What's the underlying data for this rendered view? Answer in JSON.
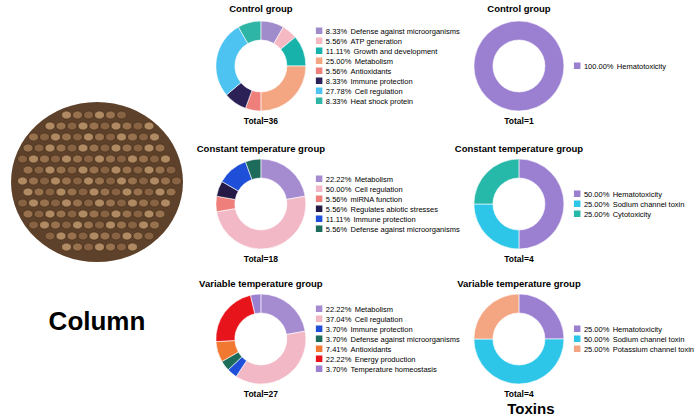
{
  "chart_data": [
    {
      "type": "donut",
      "title": "Control group",
      "subtitle": "Total=36",
      "legend": "right",
      "categories": [
        "Defense against microorganisms",
        "ATP generation",
        "Growth and development",
        "Metabolism",
        "Antioxidants",
        "Immune protection",
        "Cell regulation",
        "Heat shock protein"
      ],
      "values": [
        8.33,
        5.56,
        11.11,
        25.0,
        5.56,
        8.33,
        27.78,
        8.33
      ],
      "value_labels": [
        "8.33%",
        "5.56%",
        "11.11%",
        "25.00%",
        "5.56%",
        "8.33%",
        "27.78%",
        "8.33%"
      ],
      "colors": [
        "#a08ccb",
        "#f5b9c4",
        "#17b3aa",
        "#f4a582",
        "#ef7f7a",
        "#2b2157",
        "#4cc3f0",
        "#2fb5a6"
      ]
    },
    {
      "type": "donut",
      "title": "Control group",
      "subtitle": "Total=1",
      "legend": "right",
      "categories": [
        "Hematotoxicity"
      ],
      "values": [
        100.0
      ],
      "value_labels": [
        "100.00%"
      ],
      "colors": [
        "#9b7fd1"
      ]
    },
    {
      "type": "donut",
      "title": "Constant temperature group",
      "subtitle": "Total=18",
      "legend": "right",
      "categories": [
        "Metabolism",
        "Cell regulation",
        "miRNA function",
        "Regulates abiotic stresses",
        "Immune protection",
        "Defense against microorganisms"
      ],
      "values": [
        22.22,
        50.0,
        5.56,
        5.56,
        11.11,
        5.56
      ],
      "value_labels": [
        "22.22%",
        "50.00%",
        "5.56%",
        "5.56%",
        "11.11%",
        "5.56%"
      ],
      "colors": [
        "#a58bd0",
        "#f2b8c6",
        "#ef7f7a",
        "#241a45",
        "#1f4fd8",
        "#1d6b5a"
      ]
    },
    {
      "type": "donut",
      "title": "Constant temperature group",
      "subtitle": "Total=4",
      "legend": "right",
      "categories": [
        "Hematotoxicity",
        "Sodium channel toxin",
        "Cytotoxicity"
      ],
      "values": [
        50.0,
        25.0,
        25.0
      ],
      "value_labels": [
        "50.00%",
        "25.00%",
        "25.00%"
      ],
      "colors": [
        "#9b7fd1",
        "#2ec6e8",
        "#26b8a8"
      ]
    },
    {
      "type": "donut",
      "title": "Variable temperature group",
      "subtitle": "Total=27",
      "legend": "right",
      "categories": [
        "Metabolism",
        "Cell regulation",
        "Immune protection",
        "Defense against microorganisms",
        "Antioxidants",
        "Energy production",
        "Temperature homeostasis"
      ],
      "values": [
        22.22,
        37.04,
        3.7,
        3.7,
        7.41,
        22.22,
        3.7
      ],
      "value_labels": [
        "22.22%",
        "37.04%",
        "3.70%",
        "3.70%",
        "7.41%",
        "22.22%",
        "3.70%"
      ],
      "colors": [
        "#a58bd0",
        "#f2b8c6",
        "#1f4fd8",
        "#1d6b5a",
        "#f07830",
        "#e8141c",
        "#9b7fd0"
      ]
    },
    {
      "type": "donut",
      "title": "Variable temperature group",
      "subtitle": "Total=4",
      "legend": "right",
      "categories": [
        "Hematotoxicity",
        "Sodium channel toxin",
        "Potassium channel toxin"
      ],
      "values": [
        25.0,
        50.0,
        25.0
      ],
      "value_labels": [
        "25.00%",
        "50.00%",
        "25.00%"
      ],
      "colors": [
        "#9b7fd1",
        "#2ec6e8",
        "#f4a582"
      ]
    }
  ],
  "figure_labels": {
    "left": "Column",
    "right": "Toxins"
  }
}
